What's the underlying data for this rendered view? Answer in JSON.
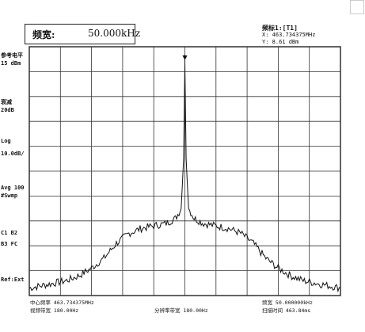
{
  "span_box": {
    "label": "频宽:",
    "value": "50.000kHz"
  },
  "marker": {
    "title": "频标1:[T1]",
    "x_line": "X: 463.734375MHz",
    "y_line": "Y: 8.61 dBm"
  },
  "left_labels": {
    "ref_level_title": "参考电平",
    "ref_level_value": "15 dBm",
    "atten_title": "衰减",
    "atten_value": "20dB",
    "scale_title": "Log",
    "scale_value": "10.0dB/",
    "avg_title": "Avg 100",
    "avg_value": "#Swmp",
    "mode_line1": "C1  B2",
    "mode_line2": "B3  FC",
    "ref_source": "Ref:Ext"
  },
  "bottom": {
    "center_freq": "中心频率 463.734375MHz",
    "video_bw": "视频带宽 180.00Hz",
    "res_bw": "分辨率带宽 180.00Hz",
    "span": "频宽 50.000000kHz",
    "sweep_time": "扫描时间 463.84ms"
  },
  "chart_data": {
    "type": "line",
    "title": "",
    "xlabel": "",
    "ylabel": "",
    "x_unit": "kHz offset",
    "x_range": [
      -25,
      25
    ],
    "y_range": [
      -85,
      15
    ],
    "grid": "on, 10 x 10 divisions",
    "series": [
      {
        "x": [
          -25,
          -23,
          -21,
          -19,
          -17,
          -15,
          -13,
          -11,
          -9,
          -7,
          -5,
          -3,
          -1.5,
          -0.6,
          -0.2,
          0,
          0.2,
          0.6,
          1.5,
          3,
          5,
          7,
          9,
          11,
          13,
          15,
          17,
          19,
          21,
          23,
          25
        ],
        "y": [
          -82,
          -81,
          -80,
          -79,
          -77,
          -74,
          -70,
          -64,
          -60,
          -58,
          -57,
          -56,
          -54,
          -50,
          -30,
          8.61,
          -30,
          -50,
          -54,
          -56,
          -57,
          -58,
          -60,
          -64,
          -70,
          -74,
          -77,
          -79,
          -80,
          -81,
          -82
        ]
      }
    ],
    "marker_x": 0
  }
}
